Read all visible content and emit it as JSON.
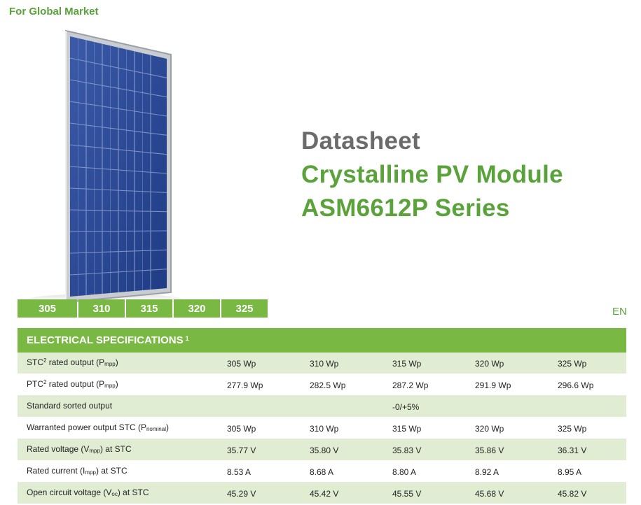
{
  "header": {
    "market": "For Global Market"
  },
  "titles": {
    "line1": "Datasheet",
    "line2": "Crystalline PV Module",
    "line3": "ASM6612P Series"
  },
  "variants": [
    "305",
    "310",
    "315",
    "320",
    "325"
  ],
  "lang": "EN",
  "colors": {
    "green": "#78b843",
    "dark_green_text": "#5aa33a",
    "row_shade": "#e1edd3",
    "title_gray": "#6b6b6b"
  },
  "specs": {
    "title": "ELECTRICAL SPECIFICATIONS",
    "title_sup": "1",
    "rows": [
      {
        "label_a": "STC",
        "sup": "2",
        "label_b": " rated output (P",
        "sub": "mpp",
        "label_c": ")",
        "values": [
          "305 Wp",
          "310 Wp",
          "315 Wp",
          "320 Wp",
          "325 Wp"
        ]
      },
      {
        "label_a": "PTC",
        "sup": "2",
        "label_b": " rated output (P",
        "sub": "mpp",
        "label_c": ")",
        "values": [
          "277.9 Wp",
          "282.5 Wp",
          "287.2 Wp",
          "291.9 Wp",
          "296.6 Wp"
        ]
      },
      {
        "label_a": "Standard sorted output",
        "sup": "",
        "label_b": "",
        "sub": "",
        "label_c": "",
        "values": [
          "",
          "",
          "-0/+5%",
          "",
          ""
        ]
      },
      {
        "label_a": "Warranted power output STC (P",
        "sup": "",
        "label_b": "",
        "sub": "nominal",
        "label_c": ")",
        "values": [
          "305 Wp",
          "310 Wp",
          "315 Wp",
          "320 Wp",
          "325 Wp"
        ]
      },
      {
        "label_a": "Rated voltage (V",
        "sup": "",
        "label_b": "",
        "sub": "mpp",
        "label_c": ") at STC",
        "values": [
          "35.77 V",
          "35.80 V",
          "35.83 V",
          "35.86 V",
          "36.31 V"
        ]
      },
      {
        "label_a": "Rated current (I",
        "sup": "",
        "label_b": "",
        "sub": "mpp",
        "label_c": ") at STC",
        "values": [
          "8.53 A",
          "8.68 A",
          "8.80 A",
          "8.92 A",
          "8.95 A"
        ]
      },
      {
        "label_a": "Open circuit voltage (V",
        "sup": "",
        "label_b": "",
        "sub": "oc",
        "label_c": ") at STC",
        "values": [
          "45.29 V",
          "45.42 V",
          "45.55 V",
          "45.68 V",
          "45.82 V"
        ]
      }
    ]
  }
}
